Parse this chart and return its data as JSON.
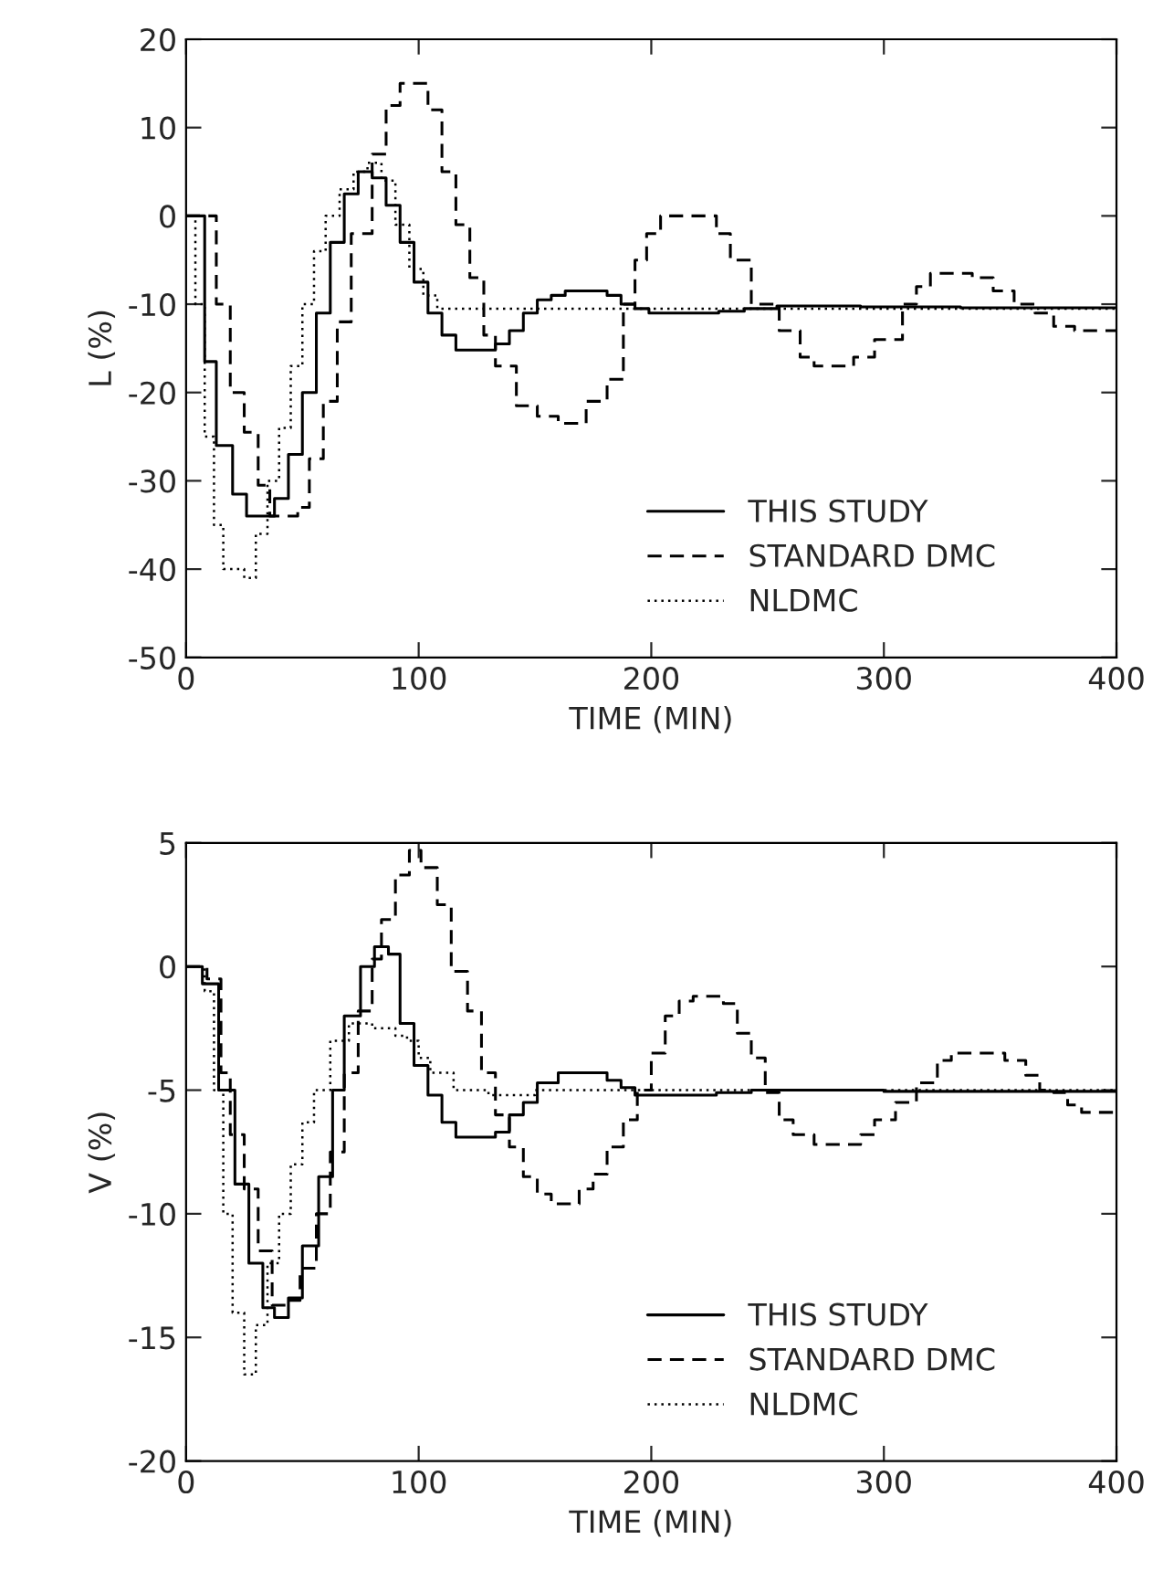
{
  "chart_data": [
    {
      "type": "step",
      "xlabel": "TIME (MIN)",
      "ylabel": "L (%)",
      "xlim": [
        0,
        400
      ],
      "ylim": [
        -50,
        20
      ],
      "xticks": [
        0,
        100,
        200,
        300,
        400
      ],
      "yticks": [
        -50,
        -40,
        -30,
        -20,
        -10,
        0,
        10,
        20
      ],
      "grid": false,
      "legend": "bottom right",
      "series": [
        {
          "name": "THIS STUDY",
          "color": "#000000",
          "line_style": "solid",
          "x": [
            0,
            8,
            13,
            20,
            26,
            38,
            44,
            50,
            56,
            62,
            68,
            74,
            80,
            86,
            92,
            98,
            104,
            110,
            116,
            133,
            139,
            145,
            151,
            157,
            163,
            181,
            187,
            193,
            199,
            229,
            240,
            254,
            290,
            333,
            400
          ],
          "values": [
            0,
            -16.5,
            -26,
            -31.5,
            -34,
            -32,
            -27,
            -20,
            -11,
            -3,
            2.5,
            5,
            4.3,
            1.2,
            -3,
            -7.5,
            -11,
            -13.5,
            -15.2,
            -14.5,
            -13,
            -11,
            -9.5,
            -9,
            -8.5,
            -9,
            -10,
            -10.5,
            -11,
            -10.8,
            -10.5,
            -10.2,
            -10.3,
            -10.4,
            -10.4
          ]
        },
        {
          "name": "STANDARD DMC",
          "color": "#000000",
          "line_style": "dashed",
          "x": [
            0,
            13,
            19,
            25,
            31,
            36,
            48,
            53,
            59,
            65,
            71,
            80,
            86,
            92,
            104,
            110,
            116,
            122,
            128,
            133,
            142,
            151,
            160,
            172,
            181,
            188,
            193,
            198,
            204,
            228,
            234,
            243,
            255,
            264,
            270,
            287,
            296,
            308,
            314,
            320,
            338,
            347,
            356,
            365,
            373,
            382,
            400
          ],
          "values": [
            0,
            -10,
            -20,
            -24.5,
            -30.5,
            -34,
            -33,
            -27.5,
            -21,
            -12,
            -2,
            7,
            12.5,
            15,
            12,
            5,
            -1,
            -7,
            -13.5,
            -17,
            -21.5,
            -22.7,
            -23.5,
            -21,
            -18.5,
            -10,
            -5,
            -2,
            0,
            -2,
            -5,
            -10,
            -13,
            -16,
            -17,
            -16,
            -14,
            -10,
            -8,
            -6.5,
            -7,
            -8.5,
            -10,
            -11,
            -12.5,
            -13,
            -13
          ]
        },
        {
          "name": "NLDMC",
          "color": "#000000",
          "line_style": "dotted",
          "x": [
            0,
            4,
            8,
            12,
            16,
            25,
            30,
            35,
            40,
            45,
            50,
            55,
            60,
            66,
            72,
            78,
            84,
            90,
            96,
            102,
            108,
            400
          ],
          "values": [
            0,
            -10,
            -25,
            -35,
            -40,
            -41,
            -36,
            -30,
            -24,
            -17,
            -10,
            -4,
            0,
            3,
            5,
            6,
            4,
            -1,
            -6,
            -9,
            -10.5,
            -10.5
          ]
        }
      ]
    },
    {
      "type": "step",
      "xlabel": "TIME (MIN)",
      "ylabel": "V (%)",
      "xlim": [
        0,
        400
      ],
      "ylim": [
        -20,
        5
      ],
      "xticks": [
        0,
        100,
        200,
        300,
        400
      ],
      "yticks": [
        -20,
        -15,
        -10,
        -5,
        0,
        5
      ],
      "grid": false,
      "legend": "bottom right",
      "series": [
        {
          "name": "THIS STUDY",
          "color": "#000000",
          "line_style": "solid",
          "x": [
            0,
            7,
            14,
            21,
            27,
            33,
            38,
            44,
            50,
            57,
            63,
            68,
            75,
            81,
            87,
            92,
            98,
            104,
            110,
            116,
            133,
            139,
            145,
            151,
            160,
            181,
            187,
            193,
            228,
            243,
            300,
            400
          ],
          "values": [
            0,
            -0.7,
            -5,
            -8.8,
            -12,
            -13.8,
            -14.2,
            -13.4,
            -11.3,
            -8.5,
            -5,
            -2,
            0,
            0.8,
            0.5,
            -2.3,
            -4,
            -5.2,
            -6.3,
            -6.9,
            -6.7,
            -6,
            -5.5,
            -4.7,
            -4.3,
            -4.6,
            -4.9,
            -5.2,
            -5.1,
            -5,
            -5.05,
            -5
          ]
        },
        {
          "name": "STANDARD DMC",
          "color": "#000000",
          "line_style": "dashed",
          "x": [
            0,
            9,
            15,
            19,
            25,
            31,
            37,
            44,
            49,
            56,
            62,
            68,
            74,
            80,
            84,
            90,
            96,
            101,
            108,
            114,
            121,
            127,
            133,
            139,
            145,
            151,
            157,
            169,
            175,
            181,
            188,
            194,
            200,
            206,
            212,
            218,
            231,
            237,
            243,
            249,
            255,
            261,
            270,
            290,
            296,
            305,
            314,
            323,
            329,
            352,
            361,
            367,
            373,
            379,
            385,
            400
          ],
          "values": [
            0,
            -0.5,
            -4.3,
            -6.8,
            -9,
            -11.5,
            -13.7,
            -13.5,
            -12.2,
            -10,
            -7.5,
            -4.3,
            -1.8,
            0.3,
            1.9,
            3.7,
            4.7,
            4,
            2.5,
            -0.2,
            -1.8,
            -4.3,
            -6,
            -7.3,
            -8.5,
            -9.2,
            -9.6,
            -9,
            -8.4,
            -7.3,
            -6.2,
            -5,
            -3.5,
            -2,
            -1.4,
            -1.2,
            -1.5,
            -2.7,
            -3.7,
            -5.1,
            -6.2,
            -6.8,
            -7.2,
            -6.8,
            -6.2,
            -5.5,
            -4.7,
            -3.8,
            -3.5,
            -3.8,
            -4.4,
            -5,
            -5.1,
            -5.6,
            -5.9,
            -5.9
          ]
        },
        {
          "name": "NLDMC",
          "color": "#000000",
          "line_style": "dotted",
          "x": [
            0,
            8,
            12,
            16,
            20,
            25,
            30,
            35,
            40,
            45,
            50,
            55,
            62,
            70,
            80,
            90,
            95,
            100,
            105,
            115,
            130,
            150,
            400
          ],
          "values": [
            0,
            -1,
            -5,
            -10,
            -14,
            -16.5,
            -14.5,
            -12,
            -10,
            -8,
            -6.3,
            -5,
            -3,
            -2.3,
            -2.5,
            -2.8,
            -3,
            -3.7,
            -4.3,
            -5,
            -5.2,
            -5,
            -5
          ]
        }
      ]
    }
  ]
}
